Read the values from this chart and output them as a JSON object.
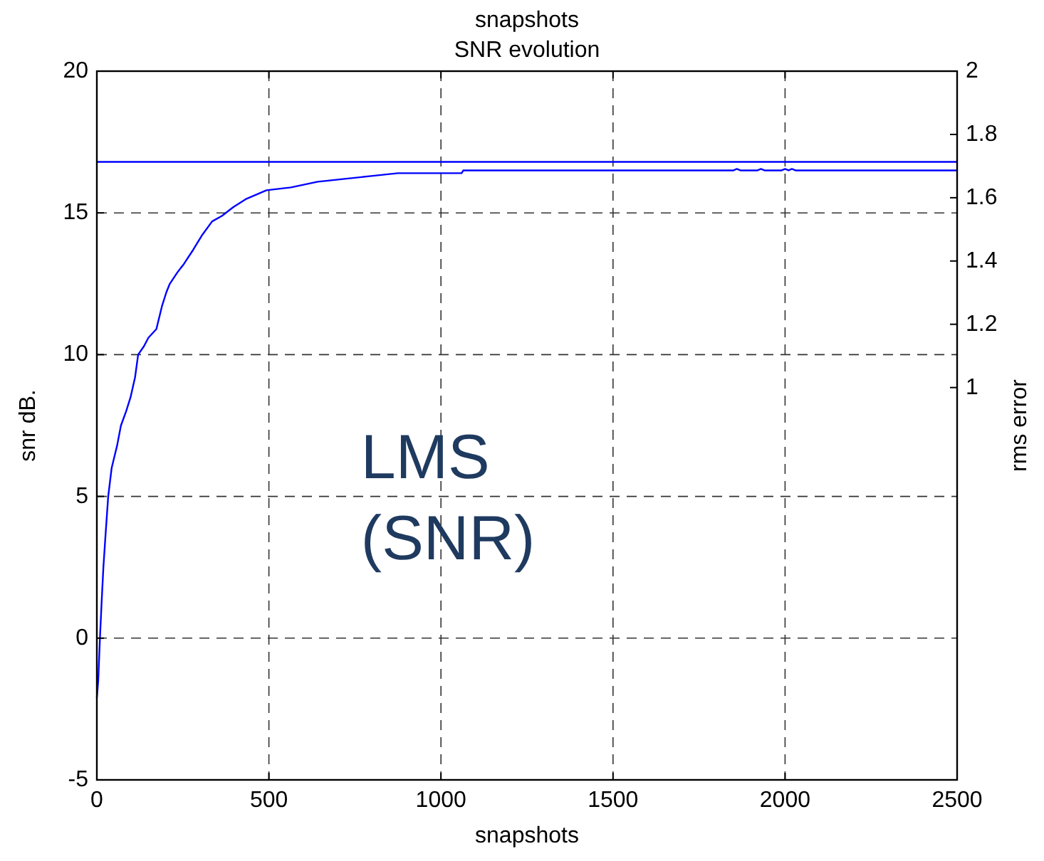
{
  "chart_data": {
    "type": "line",
    "title": "SNR evolution",
    "x2label": "snapshots",
    "xlabel": "snapshots",
    "ylabel": "snr dB.",
    "y2label": "rms error",
    "xlim": [
      0,
      2500
    ],
    "xticks": [
      0,
      500,
      1000,
      1500,
      2000,
      2500
    ],
    "ylim": [
      -5,
      20
    ],
    "yticks": [
      -5,
      0,
      5,
      10,
      15,
      20
    ],
    "y2lim": [
      -0.24,
      2
    ],
    "y2ticks": [
      1,
      1.2,
      1.4,
      1.6,
      1.8,
      2
    ],
    "grid": true,
    "ref_lines": [
      {
        "axis": "y",
        "value": 16.8,
        "color": "#0000ff"
      }
    ],
    "annotations": [
      "LMS (SNR)"
    ],
    "series": [
      {
        "color": "#0000ff",
        "x": [
          0,
          4,
          9,
          14,
          19,
          25,
          33,
          43,
          53,
          59,
          70,
          85,
          98,
          111,
          120,
          137,
          150,
          173,
          179,
          189,
          202,
          212,
          234,
          253,
          280,
          305,
          335,
          364,
          396,
          435,
          493,
          564,
          642,
          720,
          797,
          875,
          1060,
          1065,
          1850,
          1860,
          1870,
          1920,
          1930,
          1940,
          1990,
          2000,
          2010,
          2020,
          2030,
          2500
        ],
        "values": [
          -2.1,
          -1.5,
          0,
          1.3,
          2.5,
          3.6,
          5,
          6,
          6.5,
          6.8,
          7.5,
          8,
          8.5,
          9.2,
          10,
          10.3,
          10.6,
          10.9,
          11.2,
          11.7,
          12.2,
          12.5,
          12.9,
          13.2,
          13.7,
          14.2,
          14.7,
          14.9,
          15.2,
          15.5,
          15.8,
          15.9,
          16.1,
          16.2,
          16.3,
          16.4,
          16.4,
          16.5,
          16.5,
          16.55,
          16.5,
          16.5,
          16.55,
          16.5,
          16.5,
          16.55,
          16.5,
          16.55,
          16.5,
          16.5
        ]
      }
    ]
  }
}
